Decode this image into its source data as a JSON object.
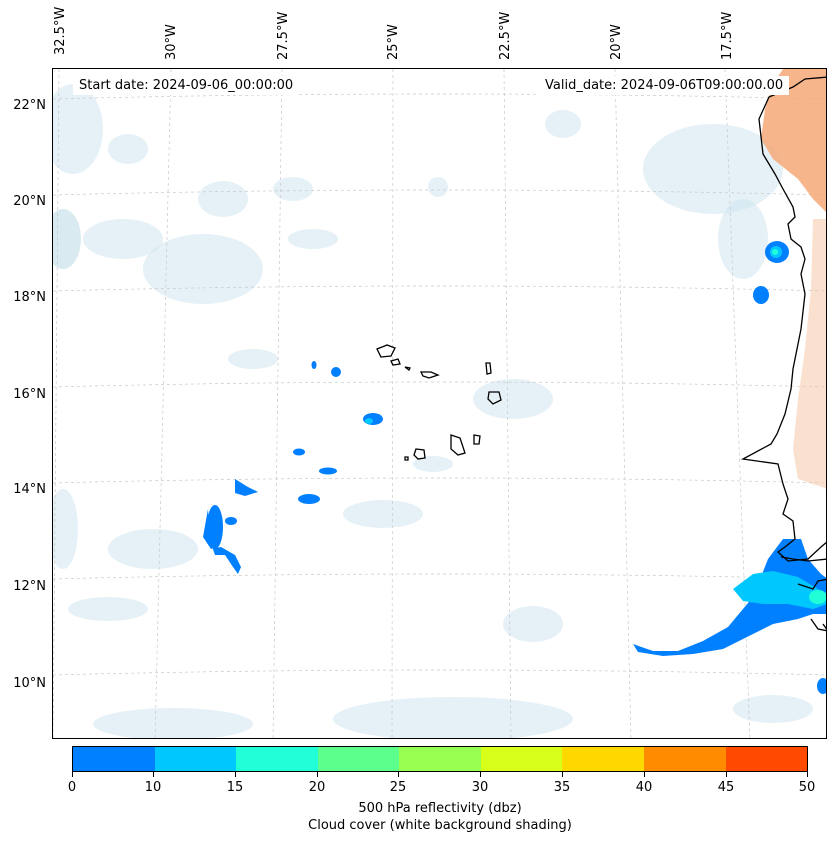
{
  "header": {
    "start_date": "Start date: 2024-09-06_00:00:00",
    "valid_date": "Valid_date: 2024-09-06T09:00:00.00"
  },
  "axes": {
    "lon_labels": [
      "32.5°W",
      "30°W",
      "27.5°W",
      "25°W",
      "22.5°W",
      "20°W",
      "17.5°W"
    ],
    "lat_labels": [
      "22°N",
      "20°N",
      "18°N",
      "16°N",
      "14°N",
      "12°N",
      "10°N"
    ],
    "grid": true
  },
  "colorbar": {
    "ticks": [
      "0",
      "10",
      "15",
      "20",
      "25",
      "30",
      "35",
      "40",
      "45",
      "50"
    ],
    "colors": [
      "#0080ff",
      "#00c8ff",
      "#20ffd8",
      "#5cff8c",
      "#96ff50",
      "#d8ff1a",
      "#ffd800",
      "#ff8c00",
      "#ff4a00"
    ],
    "label": "500 hPa reflectivity (dbz)",
    "sublabel": "Cloud cover (white background shading)"
  },
  "palette": {
    "cloud": "#cfe6ee",
    "land_warm": "#f6a878",
    "coast": "#000000"
  }
}
